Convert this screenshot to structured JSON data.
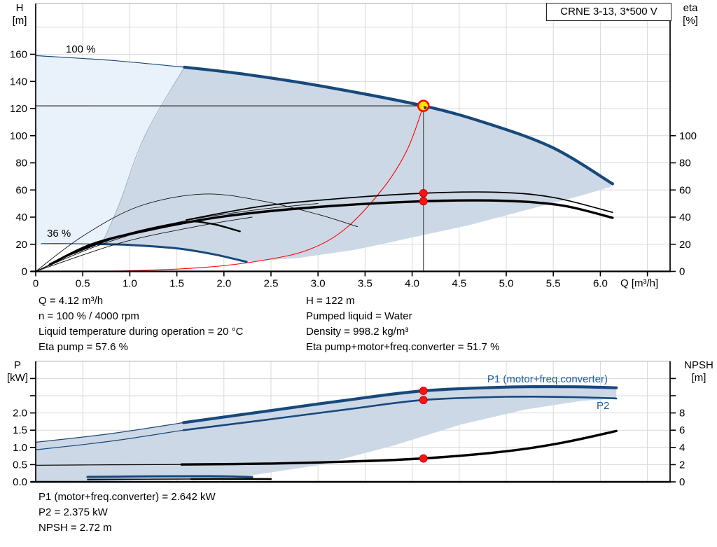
{
  "title_box": "CRNE 3-13, 3*500 V",
  "axes": {
    "top_left_title": [
      "H",
      "[m]"
    ],
    "top_right_title": [
      "eta",
      "[%]"
    ],
    "bottom_left_title": [
      "P",
      "[kW]"
    ],
    "bottom_right_title": [
      "NPSH",
      "[m]"
    ],
    "x_title": "Q [m³/h]"
  },
  "annotations": {
    "speed_100": "100 %",
    "speed_36": "36 %",
    "p1_label": "P1 (motor+freq.converter)",
    "p2_label": "P2"
  },
  "info_top_left": [
    "Q = 4.12 m³/h",
    "n = 100 % / 4000 rpm",
    "Liquid temperature during operation = 20 °C",
    "Eta pump = 57.6 %"
  ],
  "info_top_right": [
    "H = 122 m",
    "Pumped liquid = Water",
    "Density = 998.2 kg/m³",
    "Eta pump+motor+freq.converter = 51.7 %"
  ],
  "info_bottom": [
    "P1 (motor+freq.converter) = 2.642 kW",
    "P2 = 2.375 kW",
    "NPSH = 2.72 m"
  ],
  "colors": {
    "curve_blue": "#17497B",
    "label_blue": "#1F5FA0",
    "shade_light": "#E9F1FA",
    "shade_dark": "#CCD8E6",
    "boundary": "#9DB1C5",
    "red": "#FF0000",
    "yellow": "#FFE900",
    "grid": "#D8D8D8",
    "frame_gray": "#AAAAAA",
    "axis": "#000000",
    "duty_line": "#555555"
  },
  "chart_data": [
    {
      "id": "head-capacity",
      "type": "line",
      "title": "CRNE 3-13, 3*500 V",
      "xlabel": "Q [m³/h]",
      "ylabel": "H [m]",
      "y2label": "eta [%]",
      "xlim": [
        0,
        6.74
      ],
      "ylim": [
        0,
        197.5
      ],
      "y2lim": [
        0,
        197.5
      ],
      "x_ticks": [
        0,
        0.5,
        1,
        1.5,
        2,
        2.5,
        3,
        3.5,
        4,
        4.5,
        5,
        5.5,
        6
      ],
      "x_ticks_unlabeled": [
        6.5
      ],
      "y_ticks": [
        0,
        20,
        40,
        60,
        80,
        100,
        120,
        140,
        160
      ],
      "y_grid_extra": [
        180
      ],
      "y2_ticks": [
        0,
        20,
        40,
        60,
        80,
        100
      ],
      "duty_point": {
        "Q": 4.12,
        "H": 122,
        "eta_pump": 57.6,
        "eta_total": 51.7
      },
      "series": [
        {
          "name": "envelope-light",
          "style": "area_light",
          "points": [
            [
              0,
              159
            ],
            [
              1.58,
              150.5
            ],
            [
              1.16,
              100
            ],
            [
              0.885,
              49
            ],
            [
              0.7,
              20
            ],
            [
              0,
              20.3
            ]
          ]
        },
        {
          "name": "envelope-dark",
          "style": "area_dark",
          "points": [
            [
              1.58,
              150.5
            ],
            [
              2.2,
              145.5
            ],
            [
              3.0,
              137
            ],
            [
              4.12,
              122
            ],
            [
              4.8,
              109
            ],
            [
              5.5,
              91
            ],
            [
              6.13,
              64.5
            ],
            [
              6.1,
              62
            ],
            [
              5.8,
              56
            ],
            [
              5.2,
              45
            ],
            [
              4.6,
              34
            ],
            [
              4.0,
              25
            ],
            [
              3.4,
              16
            ],
            [
              2.8,
              10
            ],
            [
              2.24,
              7
            ],
            [
              1.9,
              12.5
            ],
            [
              1.5,
              17
            ],
            [
              1.0,
              19.5
            ],
            [
              0.7,
              20
            ],
            [
              0.885,
              49
            ],
            [
              1.16,
              100
            ]
          ]
        },
        {
          "name": "envelope-boundary",
          "style": "thin_gray",
          "points": [
            [
              1.58,
              150.5
            ],
            [
              1.16,
              100
            ],
            [
              0.885,
              49
            ],
            [
              0.7,
              20
            ]
          ]
        },
        {
          "name": "duty-h-line",
          "style": "duty_h",
          "points": [
            [
              0,
              122
            ],
            [
              4.12,
              122
            ]
          ]
        },
        {
          "name": "duty-v-line",
          "style": "duty_v",
          "points": [
            [
              4.12,
              122
            ],
            [
              4.12,
              0
            ]
          ]
        },
        {
          "name": "system-curve",
          "style": "red_thin",
          "points": [
            [
              0,
              0
            ],
            [
              1.0,
              0.5
            ],
            [
              1.8,
              3
            ],
            [
              2.4,
              8
            ],
            [
              2.9,
              16
            ],
            [
              3.3,
              32
            ],
            [
              3.7,
              62
            ],
            [
              3.95,
              90
            ],
            [
              4.12,
              122
            ]
          ]
        },
        {
          "name": "pump-curve-lead",
          "style": "blue_thin",
          "points": [
            [
              0,
              159
            ],
            [
              0.8,
              155.5
            ],
            [
              1.58,
              150.5
            ]
          ]
        },
        {
          "name": "pump-curve",
          "style": "blue_thick",
          "points": [
            [
              1.58,
              150.5
            ],
            [
              2.2,
              145.5
            ],
            [
              3.0,
              137
            ],
            [
              4.12,
              122
            ],
            [
              4.8,
              109
            ],
            [
              5.5,
              91
            ],
            [
              6.13,
              64.5
            ]
          ]
        },
        {
          "name": "min-speed-curve-lead",
          "style": "blue_thin",
          "points": [
            [
              0.06,
              20.5
            ],
            [
              0.35,
              20.5
            ],
            [
              0.6,
              20.2
            ]
          ]
        },
        {
          "name": "min-speed-curve",
          "style": "blue_med",
          "points": [
            [
              0.6,
              20.2
            ],
            [
              1.0,
              19.5
            ],
            [
              1.5,
              17
            ],
            [
              1.9,
              12.5
            ],
            [
              2.24,
              7
            ]
          ]
        },
        {
          "name": "eta-arc-1",
          "style": "black_hair",
          "points": [
            [
              0,
              0
            ],
            [
              0.5,
              26
            ],
            [
              1.1,
              48
            ],
            [
              1.78,
              57
            ],
            [
              2.4,
              52
            ],
            [
              3.0,
              42
            ],
            [
              3.42,
              33
            ]
          ]
        },
        {
          "name": "eta-arc-2",
          "style": "black_hair",
          "points": [
            [
              0,
              0
            ],
            [
              0.7,
              20
            ],
            [
              1.5,
              36
            ],
            [
              2.3,
              45
            ],
            [
              3.0,
              50
            ]
          ]
        },
        {
          "name": "eta-arc-3",
          "style": "black_hair",
          "points": [
            [
              0,
              0
            ],
            [
              0.9,
              21
            ],
            [
              1.7,
              33
            ],
            [
              2.3,
              40
            ]
          ]
        },
        {
          "name": "eta-36-curve",
          "style": "black_med",
          "points": [
            [
              0.35,
              12
            ],
            [
              0.9,
              26
            ],
            [
              1.55,
              36
            ],
            [
              1.85,
              35.3
            ],
            [
              2.17,
              29.5
            ]
          ]
        },
        {
          "name": "eta-total-lead",
          "style": "black_hair",
          "points": [
            [
              0,
              0
            ],
            [
              0.15,
              5
            ],
            [
              0.6,
              20
            ]
          ]
        },
        {
          "name": "eta-pump-curve",
          "style": "black_thin",
          "points": [
            [
              1.6,
              38
            ],
            [
              2.4,
              48
            ],
            [
              3.2,
              53.5
            ],
            [
              4.12,
              57.6
            ],
            [
              4.9,
              58.3
            ],
            [
              5.5,
              54.5
            ],
            [
              6.13,
              43.5
            ]
          ]
        },
        {
          "name": "eta-total-curve",
          "style": "black_thick",
          "points": [
            [
              0.15,
              5
            ],
            [
              0.6,
              20
            ],
            [
              1.2,
              30.5
            ],
            [
              2.0,
              40.5
            ],
            [
              3.0,
              47.5
            ],
            [
              4.12,
              51.7
            ],
            [
              5.0,
              52
            ],
            [
              5.6,
              48.5
            ],
            [
              6.13,
              39.5
            ]
          ]
        },
        {
          "name": "eta-pump-point",
          "style": "dot_red",
          "points": [
            [
              4.12,
              57.6
            ]
          ]
        },
        {
          "name": "eta-total-point",
          "style": "dot_red",
          "points": [
            [
              4.12,
              51.7
            ]
          ]
        },
        {
          "name": "duty-point",
          "style": "dot_duty",
          "points": [
            [
              4.12,
              122
            ]
          ]
        }
      ]
    },
    {
      "id": "power-npsh",
      "type": "line",
      "xlabel": "Q [m³/h]",
      "ylabel": "P [kW]",
      "y2label": "NPSH [m]",
      "xlim": [
        0,
        6.74
      ],
      "ylim": [
        0,
        3.5
      ],
      "y2lim": [
        0,
        14
      ],
      "x_ticks": [
        0,
        0.5,
        1,
        1.5,
        2,
        2.5,
        3,
        3.5,
        4,
        4.5,
        5,
        5.5,
        6,
        6.5
      ],
      "y_ticks": [
        0.0,
        0.5,
        1.0,
        1.5,
        2.0
      ],
      "y_ticks_unlabeled": [
        2.5,
        3.0
      ],
      "y2_ticks": [
        0,
        2,
        4,
        6,
        8
      ],
      "y2_ticks_unlabeled": [
        10,
        12
      ],
      "duty_point": {
        "Q": 4.12,
        "P1": 2.642,
        "P2": 2.375,
        "NPSH": 2.72
      },
      "series": [
        {
          "name": "power-envelope",
          "style": "area_dark",
          "points": [
            [
              0,
              1.15
            ],
            [
              0.8,
              1.4
            ],
            [
              1.57,
              1.72
            ],
            [
              2.5,
              2.07
            ],
            [
              3.3,
              2.37
            ],
            [
              4.12,
              2.642
            ],
            [
              5.0,
              2.75
            ],
            [
              5.7,
              2.76
            ],
            [
              6.17,
              2.73
            ],
            [
              6.17,
              2.42
            ],
            [
              5.8,
              2.35
            ],
            [
              5.2,
              2.1
            ],
            [
              4.5,
              1.65
            ],
            [
              3.8,
              1.05
            ],
            [
              3.0,
              0.48
            ],
            [
              2.2,
              0.15
            ],
            [
              1.4,
              0.05
            ],
            [
              0.7,
              0.03
            ],
            [
              0,
              0.02
            ]
          ]
        },
        {
          "name": "min-speed-p1-curve",
          "style": "blue_med",
          "points": [
            [
              0.55,
              0.145
            ],
            [
              1.2,
              0.16
            ],
            [
              1.85,
              0.165
            ],
            [
              2.3,
              0.14
            ]
          ]
        },
        {
          "name": "min-speed-p2-curve",
          "style": "black_hair2",
          "points": [
            [
              0.55,
              0.06
            ],
            [
              1.3,
              0.08
            ],
            [
              2.3,
              0.075
            ]
          ]
        },
        {
          "name": "min-speed-npsh-lead",
          "style": "black_hair2",
          "axis": "N",
          "points": [
            [
              0.55,
              0.3
            ],
            [
              1.2,
              0.32
            ],
            [
              1.65,
              0.33
            ]
          ]
        },
        {
          "name": "min-speed-npsh-curve",
          "style": "black_med",
          "axis": "N",
          "points": [
            [
              1.65,
              0.33
            ],
            [
              2.0,
              0.35
            ],
            [
              2.5,
              0.33
            ]
          ]
        },
        {
          "name": "npsh-curve-lead",
          "style": "black_thin_flat",
          "axis": "N",
          "points": [
            [
              0,
              1.93
            ],
            [
              0.8,
              1.98
            ],
            [
              1.55,
              2.02
            ]
          ]
        },
        {
          "name": "npsh-curve",
          "style": "black_thick",
          "axis": "N",
          "points": [
            [
              1.55,
              2.02
            ],
            [
              2.5,
              2.12
            ],
            [
              3.3,
              2.35
            ],
            [
              4.12,
              2.72
            ],
            [
              5.0,
              3.55
            ],
            [
              5.6,
              4.55
            ],
            [
              6.17,
              5.9
            ]
          ]
        },
        {
          "name": "p2-curve-lead",
          "style": "blue_thin",
          "points": [
            [
              0,
              0.93
            ],
            [
              0.8,
              1.18
            ],
            [
              1.57,
              1.5
            ]
          ]
        },
        {
          "name": "p2-curve",
          "style": "blue_med2",
          "points": [
            [
              1.57,
              1.5
            ],
            [
              2.5,
              1.82
            ],
            [
              3.3,
              2.1
            ],
            [
              4.12,
              2.375
            ],
            [
              5.0,
              2.47
            ],
            [
              5.7,
              2.46
            ],
            [
              6.17,
              2.42
            ]
          ]
        },
        {
          "name": "p1-curve-lead",
          "style": "blue_thin",
          "points": [
            [
              0,
              1.15
            ],
            [
              0.8,
              1.4
            ],
            [
              1.57,
              1.72
            ]
          ]
        },
        {
          "name": "p1-curve",
          "style": "blue_thick",
          "points": [
            [
              1.57,
              1.72
            ],
            [
              2.5,
              2.07
            ],
            [
              3.3,
              2.37
            ],
            [
              4.12,
              2.642
            ],
            [
              5.0,
              2.75
            ],
            [
              5.7,
              2.76
            ],
            [
              6.17,
              2.73
            ]
          ]
        },
        {
          "name": "p1-point",
          "style": "dot_red",
          "points": [
            [
              4.12,
              2.642
            ]
          ]
        },
        {
          "name": "p2-point",
          "style": "dot_red",
          "points": [
            [
              4.12,
              2.375
            ]
          ]
        },
        {
          "name": "npsh-point",
          "style": "dot_red",
          "axis": "N",
          "points": [
            [
              4.12,
              2.72
            ]
          ]
        }
      ]
    }
  ]
}
